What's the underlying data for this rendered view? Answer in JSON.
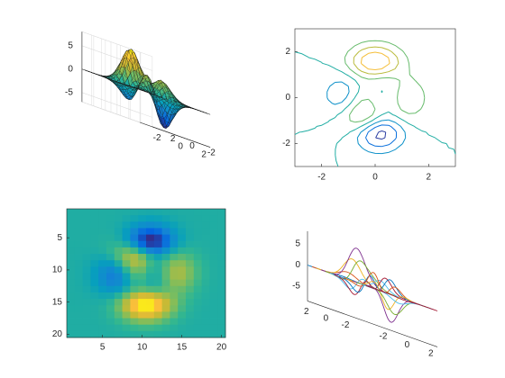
{
  "chart_data": [
    {
      "type": "surface",
      "zticks": [
        "5",
        "0",
        "-5"
      ],
      "xticks": [
        "-2",
        "0",
        "2"
      ],
      "yticks": [
        "2",
        "0",
        "-2"
      ],
      "grid": true,
      "zlim": [
        -7,
        8
      ],
      "function": "peaks(x,y), x,y in [-3,3]"
    },
    {
      "type": "contour",
      "xticks": [
        "-2",
        "0",
        "2"
      ],
      "yticks": [
        "2",
        "0",
        "-2"
      ],
      "xlim": [
        -3,
        3
      ],
      "ylim": [
        -3,
        3
      ],
      "grid": false,
      "function": "peaks"
    },
    {
      "type": "heatmap",
      "rows": 20,
      "cols": 20,
      "xticks": [
        "5",
        "10",
        "15",
        "20"
      ],
      "yticks": [
        "5",
        "10",
        "15",
        "20"
      ],
      "function": "peaks(20)",
      "colormap": "parula"
    },
    {
      "type": "line3d-ribbons",
      "zticks": [
        "5",
        "0",
        "-5"
      ],
      "xticks": [
        "-2",
        "0",
        "2"
      ],
      "yticks": [
        "2",
        "0",
        "-2"
      ],
      "grid": false,
      "series_colors": [
        "#0072BD",
        "#D95319",
        "#EDB120",
        "#7E2F8E",
        "#77AC30",
        "#4DBEEE",
        "#A2142F"
      ]
    }
  ]
}
